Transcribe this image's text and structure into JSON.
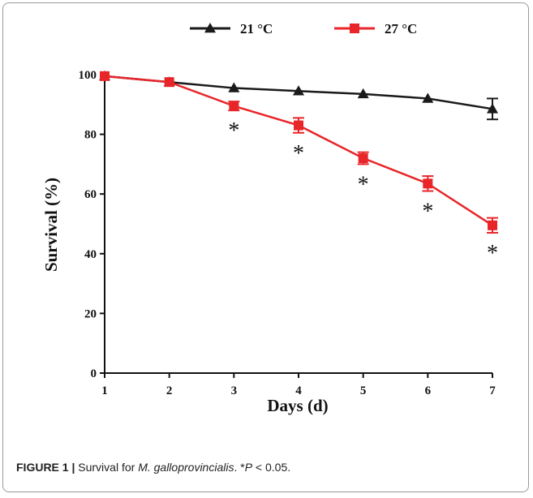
{
  "chart_data": {
    "type": "line",
    "title": "",
    "xlabel": "Days (d)",
    "ylabel": "Survival (%)",
    "x": [
      1,
      2,
      3,
      4,
      5,
      6,
      7
    ],
    "xlim": [
      1,
      7
    ],
    "ylim": [
      0,
      100
    ],
    "yticks": [
      0,
      20,
      40,
      60,
      80,
      100
    ],
    "xticks": [
      1,
      2,
      3,
      4,
      5,
      6,
      7
    ],
    "grid": false,
    "legend_position": "top-center",
    "series": [
      {
        "name": "21 °C",
        "marker": "triangle",
        "color": "#1a1a1a",
        "values": [
          99.5,
          97.5,
          95.5,
          94.5,
          93.5,
          92,
          88.5
        ],
        "errors": [
          0,
          0,
          0,
          0,
          0,
          0,
          3.5
        ]
      },
      {
        "name": "27 °C",
        "marker": "square",
        "color": "#e8262a",
        "values": [
          99.5,
          97.5,
          89.5,
          83,
          72,
          63.5,
          49.5
        ],
        "errors": [
          0,
          0,
          1.5,
          2.5,
          2,
          2.5,
          2.5
        ]
      }
    ],
    "annotations": [
      {
        "x": 3,
        "text": "*"
      },
      {
        "x": 4,
        "text": "*"
      },
      {
        "x": 5,
        "text": "*"
      },
      {
        "x": 6,
        "text": "*"
      },
      {
        "x": 7,
        "text": "*"
      }
    ]
  },
  "caption": {
    "label": "FIGURE 1 |",
    "text_before": " Survival for ",
    "species": "M. galloprovincialis",
    "text_after_species": ". *",
    "p_symbol": "P",
    "text_end": " < 0.05."
  }
}
